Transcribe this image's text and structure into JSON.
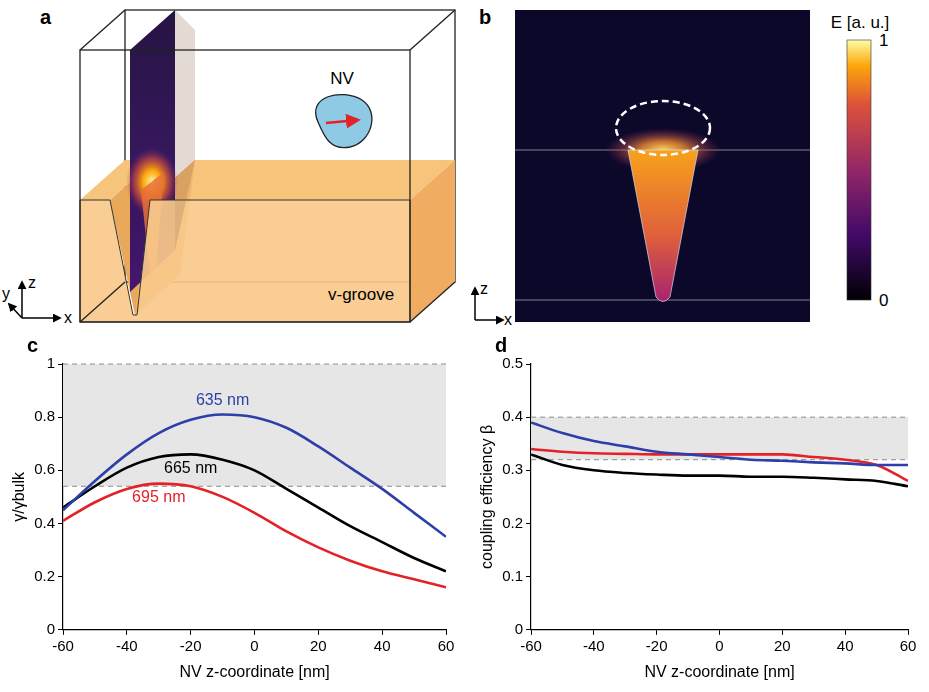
{
  "panels": [
    {
      "letter": "a",
      "labels": [
        "NV",
        "v-groove"
      ],
      "axes": [
        "x",
        "y",
        "z"
      ]
    },
    {
      "letter": "b",
      "axes": [
        "x",
        "z"
      ],
      "colorbar": {
        "title": "E [a. u.]",
        "range": [
          0,
          1
        ],
        "ticks": [
          0,
          1
        ]
      }
    }
  ],
  "chart_data": [
    {
      "letter": "c",
      "type": "line",
      "x_label": "NV z-coordinate [nm]",
      "y_label": "γ/γbulk",
      "x": [
        -60,
        -50,
        -40,
        -30,
        -20,
        -10,
        0,
        10,
        20,
        30,
        40,
        50,
        60
      ],
      "series": [
        {
          "name": "635 nm",
          "color": "#2d3fa8",
          "values": [
            0.45,
            0.56,
            0.66,
            0.74,
            0.79,
            0.81,
            0.8,
            0.76,
            0.69,
            0.61,
            0.53,
            0.44,
            0.35
          ]
        },
        {
          "name": "665 nm",
          "color": "#000000",
          "values": [
            0.46,
            0.54,
            0.61,
            0.65,
            0.66,
            0.64,
            0.6,
            0.53,
            0.46,
            0.39,
            0.33,
            0.27,
            0.22
          ]
        },
        {
          "name": "695 nm",
          "color": "#e32227",
          "values": [
            0.41,
            0.48,
            0.53,
            0.55,
            0.54,
            0.5,
            0.44,
            0.37,
            0.31,
            0.26,
            0.22,
            0.19,
            0.16
          ]
        }
      ],
      "xlim": [
        -60,
        60
      ],
      "xticks": [
        -60,
        -40,
        -20,
        0,
        20,
        40,
        60
      ],
      "ylim": [
        0,
        1
      ],
      "yticks": [
        0,
        0.2,
        0.4,
        0.6,
        0.8,
        1
      ],
      "shaded_range": [
        0.54,
        1
      ],
      "grid": false
    },
    {
      "letter": "d",
      "type": "line",
      "x_label": "NV z-coordinate [nm]",
      "y_label": "coupling efficiency β",
      "x": [
        -60,
        -50,
        -40,
        -30,
        -20,
        -10,
        0,
        10,
        20,
        30,
        40,
        50,
        60
      ],
      "series": [
        {
          "color": "#2d3fa8",
          "values": [
            0.39,
            0.37,
            0.355,
            0.345,
            0.335,
            0.33,
            0.325,
            0.32,
            0.318,
            0.315,
            0.313,
            0.31,
            0.31
          ]
        },
        {
          "color": "#e32227",
          "values": [
            0.34,
            0.335,
            0.332,
            0.331,
            0.33,
            0.33,
            0.33,
            0.33,
            0.33,
            0.325,
            0.32,
            0.31,
            0.28
          ]
        },
        {
          "color": "#000000",
          "values": [
            0.33,
            0.31,
            0.3,
            0.295,
            0.292,
            0.29,
            0.29,
            0.288,
            0.288,
            0.286,
            0.283,
            0.28,
            0.27
          ]
        }
      ],
      "xlim": [
        -60,
        60
      ],
      "xticks": [
        -60,
        -40,
        -20,
        0,
        20,
        40,
        60
      ],
      "ylim": [
        0,
        0.5
      ],
      "yticks": [
        0,
        0.1,
        0.2,
        0.3,
        0.4,
        0.5
      ],
      "shaded_range": [
        0.32,
        0.4
      ],
      "grid": false
    }
  ]
}
